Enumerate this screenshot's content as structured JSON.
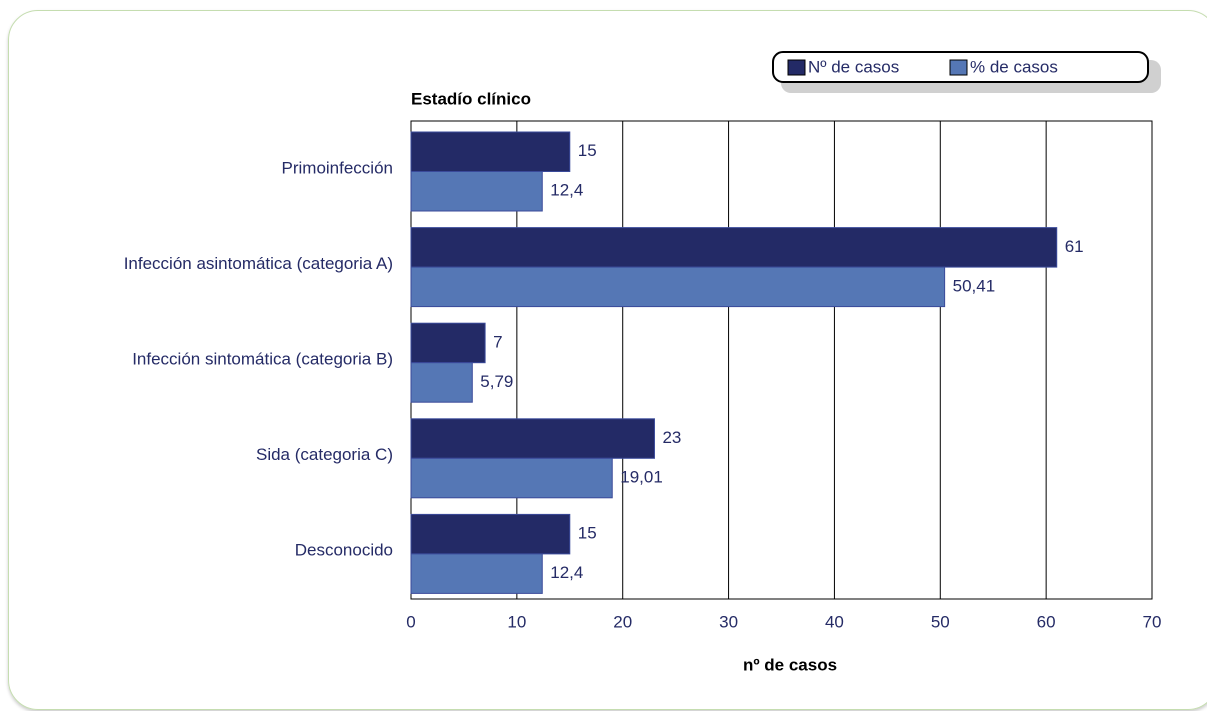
{
  "chart_data": {
    "type": "hbar",
    "title": "Estadío clínico",
    "x_label": "nº de casos",
    "categories": [
      "Primoinfección",
      "Infección asintomática (categoria A)",
      "Infección sintomática (categoria B)",
      "Sida (categoria C)",
      "Desconocido"
    ],
    "series": [
      {
        "name": "Nº de casos",
        "color": "#232a66",
        "values": [
          15,
          61,
          7,
          23,
          15
        ]
      },
      {
        "name": "% de casos",
        "color": "#5577b5",
        "values": [
          12.4,
          50.41,
          5.79,
          19.01,
          12.4
        ],
        "value_labels": [
          "12,4",
          "50,41",
          "5,79",
          "19,01",
          "12,4"
        ]
      }
    ],
    "xlim": [
      0,
      70
    ],
    "xticks": [
      0,
      10,
      20,
      30,
      40,
      50,
      60,
      70
    ],
    "grid": true,
    "legend": "top-right"
  }
}
